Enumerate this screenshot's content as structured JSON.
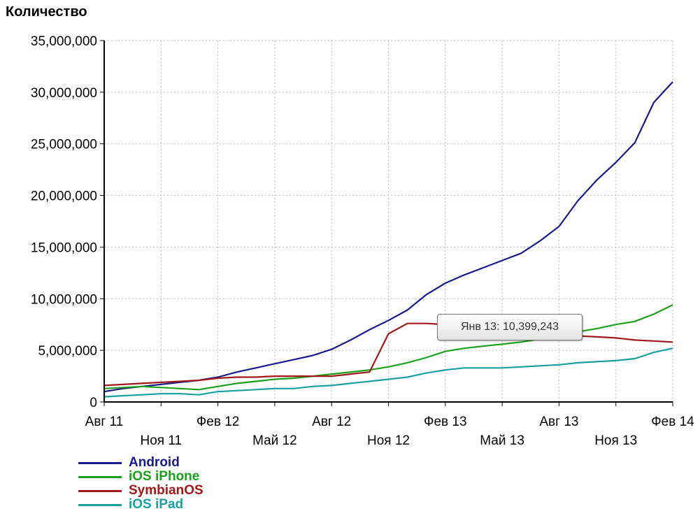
{
  "chart_data": {
    "type": "line",
    "ylabel": "Количество",
    "xlabel": "",
    "ylim": [
      0,
      35000000
    ],
    "y_ticks": [
      0,
      5000000,
      10000000,
      15000000,
      20000000,
      25000000,
      30000000,
      35000000
    ],
    "y_tick_labels": [
      "0",
      "5,000,000",
      "10,000,000",
      "15,000,000",
      "20,000,000",
      "25,000,000",
      "30,000,000",
      "35,000,000"
    ],
    "x": [
      "Авг 11",
      "Сен 11",
      "Окт 11",
      "Ноя 11",
      "Дек 11",
      "Янв 12",
      "Фев 12",
      "Мар 12",
      "Апр 12",
      "Май 12",
      "Июн 12",
      "Июл 12",
      "Авг 12",
      "Сен 12",
      "Окт 12",
      "Ноя 12",
      "Дек 12",
      "Янв 13",
      "Фев 13",
      "Мар 13",
      "Апр 13",
      "Май 13",
      "Июн 13",
      "Июл 13",
      "Авг 13",
      "Сен 13",
      "Окт 13",
      "Ноя 13",
      "Дек 13",
      "Янв 14",
      "Фев 14"
    ],
    "x_tick_labels": [
      {
        "index": 0,
        "label": "Авг 11",
        "row": 0
      },
      {
        "index": 3,
        "label": "Ноя 11",
        "row": 1
      },
      {
        "index": 6,
        "label": "Фев 12",
        "row": 0
      },
      {
        "index": 9,
        "label": "Май 12",
        "row": 1
      },
      {
        "index": 12,
        "label": "Авг 12",
        "row": 0
      },
      {
        "index": 15,
        "label": "Ноя 12",
        "row": 1
      },
      {
        "index": 18,
        "label": "Фев 13",
        "row": 0
      },
      {
        "index": 21,
        "label": "Май 13",
        "row": 1
      },
      {
        "index": 24,
        "label": "Авг 13",
        "row": 0
      },
      {
        "index": 27,
        "label": "Ноя 13",
        "row": 1
      },
      {
        "index": 30,
        "label": "Фев 14",
        "row": 0
      }
    ],
    "grid": true,
    "legend_position": "bottom-left",
    "series": [
      {
        "name": "Android",
        "color": "#1a1a8c",
        "values": [
          1000000,
          1300000,
          1500000,
          1700000,
          1900000,
          2100000,
          2400000,
          2900000,
          3300000,
          3700000,
          4100000,
          4500000,
          5100000,
          6000000,
          7000000,
          7900000,
          8900000,
          10400000,
          11500000,
          12300000,
          13000000,
          13700000,
          14400000,
          15600000,
          17000000,
          19500000,
          21500000,
          23200000,
          25100000,
          29000000,
          31000000
        ]
      },
      {
        "name": "iOS iPhone",
        "color": "#1aa01a",
        "values": [
          1300000,
          1400000,
          1500000,
          1400000,
          1300000,
          1200000,
          1500000,
          1800000,
          2000000,
          2200000,
          2300000,
          2500000,
          2700000,
          2900000,
          3100000,
          3400000,
          3800000,
          4300000,
          4900000,
          5200000,
          5400000,
          5600000,
          5800000,
          6100000,
          6400000,
          6800000,
          7100000,
          7500000,
          7800000,
          8500000,
          9400000
        ]
      },
      {
        "name": "SymbianOS",
        "color": "#a01a1a",
        "values": [
          1600000,
          1700000,
          1800000,
          1900000,
          2000000,
          2100000,
          2300000,
          2400000,
          2400000,
          2500000,
          2500000,
          2500000,
          2500000,
          2700000,
          2900000,
          6600000,
          7600000,
          7600000,
          7500000,
          7400000,
          7200000,
          7000000,
          6800000,
          6700000,
          6500000,
          6400000,
          6300000,
          6200000,
          6000000,
          5900000,
          5800000
        ]
      },
      {
        "name": "iOS iPad",
        "color": "#1aa0a0",
        "values": [
          500000,
          600000,
          700000,
          800000,
          800000,
          700000,
          1000000,
          1100000,
          1200000,
          1300000,
          1300000,
          1500000,
          1600000,
          1800000,
          2000000,
          2200000,
          2400000,
          2800000,
          3100000,
          3300000,
          3300000,
          3300000,
          3400000,
          3500000,
          3600000,
          3800000,
          3900000,
          4000000,
          4200000,
          4800000,
          5200000
        ]
      }
    ],
    "annotation": {
      "text": "Янв 13: 10,399,243",
      "series": "Android",
      "x": "Янв 13",
      "y": 10399243
    }
  }
}
